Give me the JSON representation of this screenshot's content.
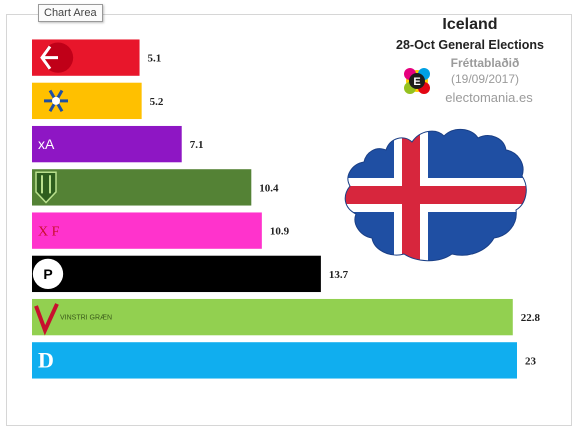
{
  "tooltip": "Chart Area",
  "header": {
    "title": "Iceland",
    "subtitle": "28-Oct General Elections",
    "source": "Fréttablaðið",
    "source_date": "(19/09/2017)",
    "brand": "electomania.es",
    "logo_letter": "E"
  },
  "colors": {
    "frame_border": "#d6d6d6",
    "flag_blue": "#1f4fa3",
    "flag_white": "#ffffff",
    "flag_red": "#d7263d"
  },
  "chart_data": {
    "type": "bar",
    "orientation": "horizontal",
    "title": "",
    "xlabel": "",
    "ylabel": "",
    "xlim": [
      0,
      23
    ],
    "grid": false,
    "legend": "none",
    "bars": [
      {
        "value": 5.1,
        "color": "#e8162b",
        "logo": "party-logo-red"
      },
      {
        "value": 5.2,
        "color": "#ffc000",
        "logo": "party-logo-snowflake"
      },
      {
        "value": 7.1,
        "color": "#8e16c4",
        "logo": "party-logo-xa",
        "logo_text": "xA"
      },
      {
        "value": 10.4,
        "color": "#548235",
        "logo": "party-logo-green-shield"
      },
      {
        "value": 10.9,
        "color": "#ff33cc",
        "logo": "party-logo-xf",
        "logo_text": "X F"
      },
      {
        "value": 13.7,
        "color": "#000000",
        "logo": "party-logo-pirate",
        "logo_text": "P"
      },
      {
        "value": 22.8,
        "color": "#92d050",
        "logo": "party-logo-vinstri-graen",
        "logo_text": "VINSTRI GRÆN"
      },
      {
        "value": 23,
        "color": "#10aeef",
        "logo": "party-logo-d",
        "logo_text": "D"
      }
    ]
  }
}
